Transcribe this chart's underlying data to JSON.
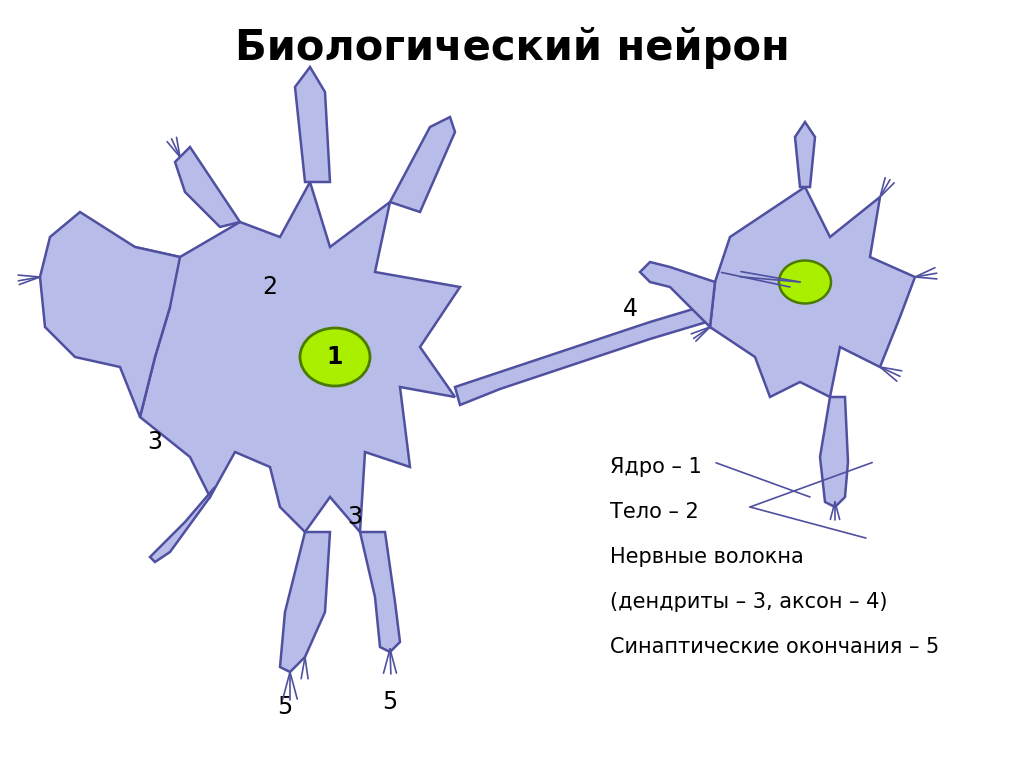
{
  "title": "Биологический нейрон",
  "title_fontsize": 30,
  "title_fontweight": "bold",
  "bg_color": "#ffffff",
  "neuron_fill": "#b8bce8",
  "neuron_edge": "#5050a0",
  "nucleus_fill": "#aaee00",
  "nucleus_edge": "#4a7a00",
  "legend_lines": [
    "Ядро – 1",
    "Тело – 2",
    "Нервные волокна",
    "(дендриты – 3, аксон – 4)",
    "Синаптические окончания – 5"
  ],
  "edge_width": 1.8,
  "thin_lw": 1.2
}
